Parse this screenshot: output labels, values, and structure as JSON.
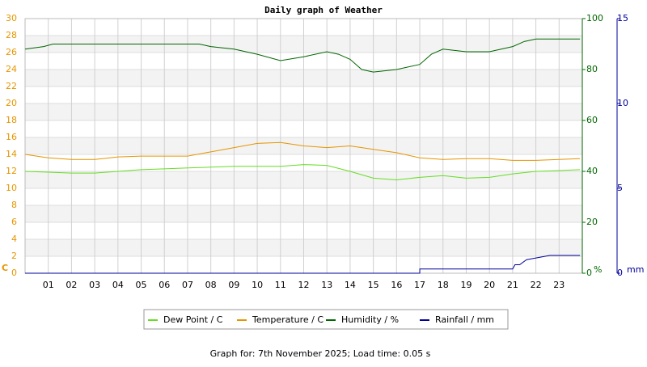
{
  "chart_data": {
    "type": "line",
    "title": "Daily graph of Weather",
    "footer": "Graph for: 7th November 2025; Load time: 0.05 s",
    "xlim": [
      0,
      24
    ],
    "xticks": [
      {
        "value": 1,
        "label": "01"
      },
      {
        "value": 2,
        "label": "02"
      },
      {
        "value": 3,
        "label": "03"
      },
      {
        "value": 4,
        "label": "04"
      },
      {
        "value": 5,
        "label": "05"
      },
      {
        "value": 6,
        "label": "06"
      },
      {
        "value": 7,
        "label": "07"
      },
      {
        "value": 8,
        "label": "08"
      },
      {
        "value": 9,
        "label": "09"
      },
      {
        "value": 10,
        "label": "10"
      },
      {
        "value": 11,
        "label": "11"
      },
      {
        "value": 12,
        "label": "12"
      },
      {
        "value": 13,
        "label": "13"
      },
      {
        "value": 14,
        "label": "14"
      },
      {
        "value": 15,
        "label": "15"
      },
      {
        "value": 16,
        "label": "16"
      },
      {
        "value": 17,
        "label": "17"
      },
      {
        "value": 18,
        "label": "18"
      },
      {
        "value": 19,
        "label": "19"
      },
      {
        "value": 20,
        "label": "20"
      },
      {
        "value": 21,
        "label": "21"
      },
      {
        "value": 22,
        "label": "22"
      },
      {
        "value": 23,
        "label": "23"
      }
    ],
    "ylim": [
      0,
      30
    ],
    "yticks": [
      0,
      2,
      4,
      6,
      8,
      10,
      12,
      14,
      16,
      18,
      20,
      22,
      24,
      26,
      28,
      30
    ],
    "y_unit": "C",
    "y_color": "#e69500",
    "y2lim": [
      0,
      100
    ],
    "y2ticks": [
      0,
      20,
      40,
      60,
      80,
      100
    ],
    "y2_unit": "%",
    "y2_color": "#006600",
    "y3lim": [
      0,
      15
    ],
    "y3ticks": [
      0,
      5,
      10,
      15
    ],
    "y3_unit": "mm",
    "y3_color": "#000099",
    "grid": true,
    "legend": "bottom",
    "series": [
      {
        "name": "Dew Point / C",
        "color": "#66dd22",
        "axis": "y",
        "x": [
          0,
          1,
          2,
          3,
          4,
          5,
          6,
          7,
          8,
          9,
          10,
          11,
          12,
          13,
          14,
          15,
          16,
          17,
          18,
          19,
          20,
          21,
          22,
          23,
          23.9
        ],
        "values": [
          12.0,
          11.9,
          11.8,
          11.8,
          12.0,
          12.2,
          12.3,
          12.4,
          12.5,
          12.6,
          12.6,
          12.6,
          12.8,
          12.7,
          12.0,
          11.2,
          11.0,
          11.3,
          11.5,
          11.2,
          11.3,
          11.7,
          12.0,
          12.1,
          12.2
        ]
      },
      {
        "name": "Temperature / C",
        "color": "#e69500",
        "axis": "y",
        "x": [
          0,
          1,
          2,
          3,
          4,
          5,
          6,
          7,
          8,
          9,
          10,
          11,
          12,
          13,
          14,
          15,
          16,
          17,
          18,
          19,
          20,
          21,
          22,
          23,
          23.9
        ],
        "values": [
          14.0,
          13.6,
          13.4,
          13.4,
          13.7,
          13.8,
          13.8,
          13.8,
          14.3,
          14.8,
          15.3,
          15.4,
          15.0,
          14.8,
          15.0,
          14.6,
          14.2,
          13.6,
          13.4,
          13.5,
          13.5,
          13.3,
          13.3,
          13.4,
          13.5
        ]
      },
      {
        "name": "Humidity / %",
        "color": "#006600",
        "axis": "y2",
        "x": [
          0,
          0.8,
          1.2,
          7.5,
          8,
          9,
          10,
          11,
          12,
          13,
          13.5,
          14,
          14.5,
          15,
          16,
          17,
          17.5,
          18,
          19,
          20,
          21,
          21.5,
          22,
          23.9
        ],
        "values": [
          88,
          89,
          90,
          90,
          89,
          88,
          86,
          83.5,
          85,
          87,
          86,
          84,
          80,
          79,
          80,
          82,
          86,
          88,
          87,
          87,
          89,
          91,
          92,
          92
        ]
      },
      {
        "name": "Rainfall / mm",
        "color": "#000099",
        "axis": "y3",
        "x": [
          0,
          17,
          17,
          21,
          21.1,
          21.3,
          21.6,
          22.6,
          23.9
        ],
        "values": [
          0,
          0,
          0.25,
          0.25,
          0.5,
          0.5,
          0.8,
          1.05,
          1.05
        ]
      }
    ]
  }
}
